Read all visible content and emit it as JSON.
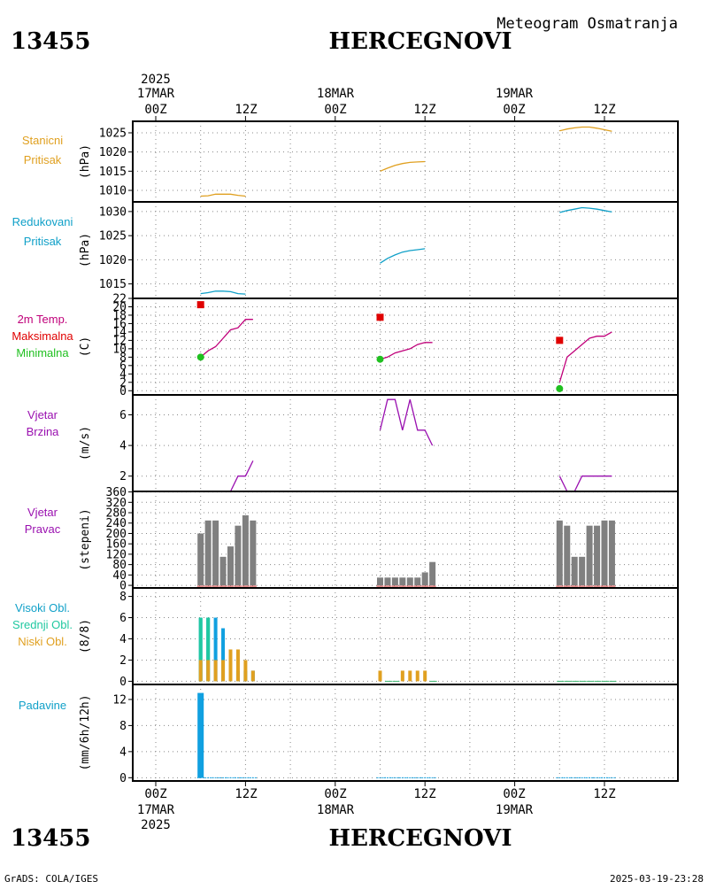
{
  "header": {
    "station_id": "13455",
    "station_name": "HERCEGNOVI",
    "subtitle": "Meteogram Osmatranja"
  },
  "top_axis": {
    "year": "2025",
    "dates": [
      "17MAR",
      "18MAR",
      "19MAR"
    ],
    "hours": [
      "00Z",
      "12Z",
      "00Z",
      "12Z",
      "00Z",
      "12Z"
    ]
  },
  "bottom_axis": {
    "year": "2025",
    "dates": [
      "17MAR",
      "18MAR",
      "19MAR"
    ],
    "hours": [
      "00Z",
      "12Z",
      "00Z",
      "12Z",
      "00Z",
      "12Z"
    ]
  },
  "footer": {
    "left": "GrADS: COLA/IGES",
    "right": "2025-03-19-23:28"
  },
  "colors": {
    "orange": "#e0a020",
    "cyan": "#10a0c8",
    "magenta": "#c0007a",
    "red": "#e00000",
    "green": "#20c020",
    "purple": "#9a10b0",
    "gray": "#808080",
    "teal": "#20c8a0",
    "blue": "#10a0e0"
  },
  "panels": [
    {
      "labels": [
        "Stanicni",
        "Pritisak"
      ],
      "label_colors": [
        "orange",
        "orange"
      ],
      "unit": "(hPa)"
    },
    {
      "labels": [
        "Redukovani",
        "Pritisak"
      ],
      "label_colors": [
        "cyan",
        "cyan"
      ],
      "unit": "(hPa)"
    },
    {
      "labels": [
        "2m Temp.",
        "Maksimalna",
        "Minimalna"
      ],
      "label_colors": [
        "magenta",
        "red",
        "green"
      ],
      "unit": "(C)"
    },
    {
      "labels": [
        "Vjetar",
        "Brzina"
      ],
      "label_colors": [
        "purple",
        "purple"
      ],
      "unit": "(m/s)"
    },
    {
      "labels": [
        "Vjetar",
        "Pravac"
      ],
      "label_colors": [
        "purple",
        "purple"
      ],
      "unit": "(stepeni)"
    },
    {
      "labels": [
        "Visoki Obl.",
        "Srednji Obl.",
        "Niski Obl."
      ],
      "label_colors": [
        "cyan",
        "teal",
        "orange"
      ],
      "unit": "(8/8)"
    },
    {
      "labels": [
        "Padavine"
      ],
      "label_colors": [
        "cyan"
      ],
      "unit": "(mm/6h/12h)"
    }
  ],
  "chart_data": [
    {
      "type": "line",
      "name": "station_pressure",
      "x_unit": "hours since 2025-03-17 00Z",
      "ylim": [
        1007,
        1028
      ],
      "yticks": [
        1010,
        1015,
        1020,
        1025
      ],
      "series": [
        {
          "color": "orange",
          "segments": [
            [
              [
                6,
                1008.5
              ],
              [
                7,
                1008.6
              ],
              [
                8,
                1009.0
              ],
              [
                9,
                1009.0
              ],
              [
                10,
                1009.0
              ],
              [
                11,
                1008.7
              ],
              [
                12,
                1008.5
              ]
            ],
            [
              [
                30,
                1015.0
              ],
              [
                31,
                1015.8
              ],
              [
                32,
                1016.5
              ],
              [
                33,
                1017.0
              ],
              [
                34,
                1017.3
              ],
              [
                35,
                1017.4
              ],
              [
                36,
                1017.5
              ]
            ],
            [
              [
                54,
                1025.5
              ],
              [
                55,
                1026.0
              ],
              [
                56,
                1026.3
              ],
              [
                57,
                1026.5
              ],
              [
                58,
                1026.5
              ],
              [
                59,
                1026.2
              ],
              [
                60,
                1025.8
              ],
              [
                61,
                1025.4
              ]
            ]
          ]
        }
      ]
    },
    {
      "type": "line",
      "name": "reduced_pressure",
      "x_unit": "hours since 2025-03-17 00Z",
      "ylim": [
        1012,
        1032
      ],
      "yticks": [
        1015,
        1020,
        1025,
        1030
      ],
      "series": [
        {
          "color": "cyan",
          "segments": [
            [
              [
                6,
                1013.0
              ],
              [
                7,
                1013.2
              ],
              [
                8,
                1013.5
              ],
              [
                9,
                1013.5
              ],
              [
                10,
                1013.4
              ],
              [
                11,
                1013.0
              ],
              [
                12,
                1012.9
              ]
            ],
            [
              [
                30,
                1019.3
              ],
              [
                31,
                1020.3
              ],
              [
                32,
                1021.0
              ],
              [
                33,
                1021.6
              ],
              [
                34,
                1021.9
              ],
              [
                35,
                1022.1
              ],
              [
                36,
                1022.3
              ]
            ],
            [
              [
                54,
                1029.8
              ],
              [
                55,
                1030.2
              ],
              [
                56,
                1030.5
              ],
              [
                57,
                1030.8
              ],
              [
                58,
                1030.7
              ],
              [
                59,
                1030.5
              ],
              [
                60,
                1030.2
              ],
              [
                61,
                1029.9
              ]
            ]
          ]
        }
      ]
    },
    {
      "type": "line",
      "name": "temperature_2m",
      "x_unit": "hours since 2025-03-17 00Z",
      "ylim": [
        -1,
        22
      ],
      "yticks": [
        0,
        2,
        4,
        6,
        8,
        10,
        12,
        14,
        16,
        18,
        20,
        22
      ],
      "series": [
        {
          "color": "magenta",
          "segments": [
            [
              [
                6,
                8.0
              ],
              [
                7,
                9.5
              ],
              [
                8,
                10.5
              ],
              [
                9,
                12.5
              ],
              [
                10,
                14.5
              ],
              [
                11,
                15.0
              ],
              [
                12,
                17.0
              ],
              [
                13,
                17.0
              ]
            ],
            [
              [
                30,
                7.5
              ],
              [
                31,
                8.0
              ],
              [
                32,
                9.0
              ],
              [
                33,
                9.5
              ],
              [
                34,
                10.0
              ],
              [
                35,
                11.0
              ],
              [
                36,
                11.5
              ],
              [
                37,
                11.5
              ]
            ],
            [
              [
                54,
                2.0
              ],
              [
                55,
                8.0
              ],
              [
                56,
                9.5
              ],
              [
                57,
                11.0
              ],
              [
                58,
                12.5
              ],
              [
                59,
                13.0
              ],
              [
                60,
                13.0
              ],
              [
                61,
                14.0
              ]
            ]
          ]
        }
      ],
      "max_points": [
        [
          6,
          20.5
        ],
        [
          30,
          17.5
        ],
        [
          54,
          12.0
        ]
      ],
      "min_points": [
        [
          6,
          8.0
        ],
        [
          30,
          7.5
        ],
        [
          54,
          0.5
        ]
      ]
    },
    {
      "type": "line",
      "name": "wind_speed",
      "x_unit": "hours since 2025-03-17 00Z",
      "ylim": [
        1,
        7.3
      ],
      "yticks": [
        2,
        4,
        6
      ],
      "series": [
        {
          "color": "purple",
          "segments": [
            [
              [
                6,
                1.0
              ],
              [
                7,
                1.0
              ],
              [
                8,
                1.0
              ],
              [
                9,
                1.0
              ],
              [
                10,
                1.0
              ],
              [
                11,
                2.0
              ],
              [
                12,
                2.0
              ],
              [
                13,
                3.0
              ]
            ],
            [
              [
                30,
                5.0
              ],
              [
                31,
                7.0
              ],
              [
                32,
                7.0
              ],
              [
                33,
                5.0
              ],
              [
                34,
                7.0
              ],
              [
                35,
                5.0
              ],
              [
                36,
                5.0
              ],
              [
                37,
                4.0
              ]
            ],
            [
              [
                54,
                2.0
              ],
              [
                55,
                1.0
              ],
              [
                56,
                1.0
              ],
              [
                57,
                2.0
              ],
              [
                58,
                2.0
              ],
              [
                59,
                2.0
              ],
              [
                60,
                2.0
              ],
              [
                61,
                2.0
              ]
            ]
          ]
        }
      ]
    },
    {
      "type": "bar",
      "name": "wind_direction",
      "x_unit": "hours since 2025-03-17 00Z",
      "ylim": [
        -10,
        362
      ],
      "yticks": [
        0,
        40,
        80,
        120,
        160,
        200,
        240,
        280,
        320,
        360
      ],
      "bar_color": "gray",
      "x": [
        6,
        7,
        8,
        9,
        10,
        11,
        12,
        13,
        30,
        31,
        32,
        33,
        34,
        35,
        36,
        37,
        54,
        55,
        56,
        57,
        58,
        59,
        60,
        61
      ],
      "values": [
        200,
        250,
        250,
        110,
        150,
        230,
        270,
        250,
        30,
        30,
        30,
        30,
        30,
        30,
        50,
        90,
        250,
        230,
        110,
        110,
        230,
        230,
        250,
        250
      ]
    },
    {
      "type": "bar",
      "name": "cloud_cover",
      "x_unit": "hours since 2025-03-17 00Z",
      "ylim": [
        -0.3,
        8.8
      ],
      "yticks": [
        0,
        2,
        4,
        6,
        8
      ],
      "x": [
        6,
        7,
        8,
        9,
        10,
        11,
        12,
        13,
        30,
        31,
        32,
        33,
        34,
        35,
        36,
        37,
        54,
        55,
        56,
        57,
        58,
        59,
        60,
        61
      ],
      "series": [
        {
          "name": "Visoki Obl.",
          "color": "blue",
          "values": [
            6,
            6,
            6,
            5,
            1,
            1,
            1,
            1,
            0,
            0,
            0,
            0,
            0,
            0,
            0,
            0,
            0,
            0,
            0,
            0,
            0,
            0,
            0,
            0
          ]
        },
        {
          "name": "Srednji Obl.",
          "color": "teal",
          "values": [
            6,
            6,
            0,
            0,
            0,
            0,
            0,
            0,
            0,
            0,
            0,
            0,
            0,
            0,
            0,
            0,
            0,
            0,
            0,
            0,
            0,
            0,
            0,
            0
          ]
        },
        {
          "name": "Niski Obl.",
          "color": "orange",
          "values": [
            2,
            2,
            2,
            2,
            3,
            3,
            2,
            1,
            1,
            0,
            0,
            1,
            1,
            1,
            1,
            0,
            0,
            0,
            0,
            0,
            0,
            0,
            0,
            0
          ]
        }
      ]
    },
    {
      "type": "bar",
      "name": "precipitation",
      "x_unit": "hours since 2025-03-17 00Z",
      "ylim": [
        -0.5,
        14.3
      ],
      "yticks": [
        0,
        4,
        8,
        12
      ],
      "bar_color": "blue",
      "x": [
        6,
        7,
        8,
        9,
        10,
        11,
        12,
        13,
        30,
        31,
        32,
        33,
        34,
        35,
        36,
        37,
        54,
        55,
        56,
        57,
        58,
        59,
        60,
        61
      ],
      "values": [
        13,
        0,
        0,
        0,
        0,
        0,
        0,
        0,
        0,
        0,
        0,
        0,
        0,
        0,
        0,
        0,
        0,
        0,
        0,
        0,
        0,
        0,
        0,
        0
      ]
    }
  ]
}
